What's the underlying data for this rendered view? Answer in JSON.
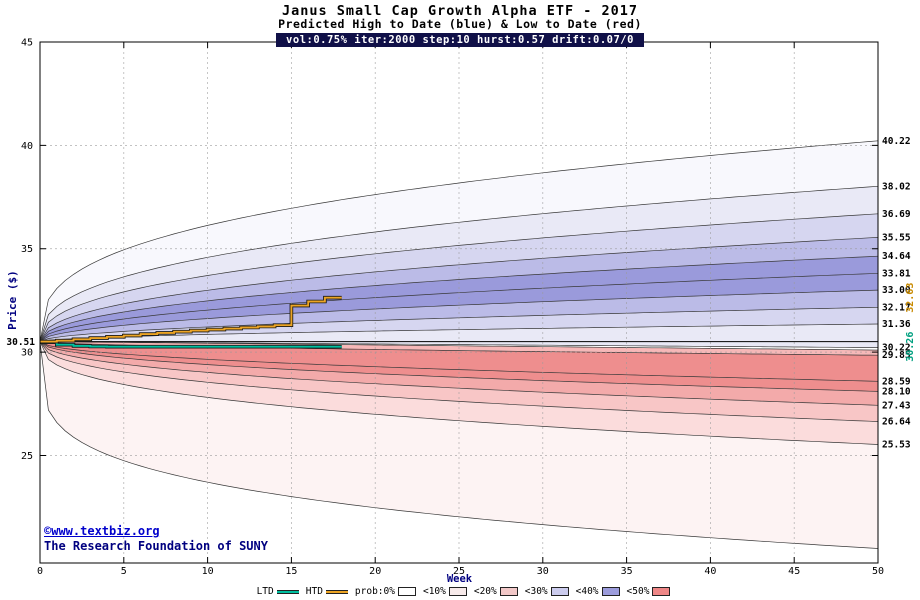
{
  "header": {
    "title": "Janus Small Cap Growth Alpha ETF - 2017",
    "subtitle": "Predicted High to Date (blue) &  Low to Date (red)",
    "params_bar": "vol:0.75% iter:2000 step:10 hurst:0.57 drift:0.07/0"
  },
  "axes": {
    "xlabel": "Week",
    "ylabel": "Price ($)",
    "start_price_label": "30.51"
  },
  "watermark": {
    "line1": "©www.textbiz.org",
    "line2": "The Research Foundation of SUNY"
  },
  "legend": {
    "line_items": [
      {
        "label": "LTD",
        "color": "#00bfa0"
      },
      {
        "label": "HTD",
        "color": "#eca424"
      }
    ],
    "band_items": [
      {
        "label": "prob:0%",
        "color": "#ffffff"
      },
      {
        "label": "<10%",
        "color": "#f7eaea"
      },
      {
        "label": "<20%",
        "color": "#f2c8c8"
      },
      {
        "label": "<30%",
        "color": "#ccccee"
      },
      {
        "label": "<40%",
        "color": "#9c9cdc"
      },
      {
        "label": "<50%",
        "color": "#ee8686"
      }
    ]
  },
  "chart_data": {
    "type": "area",
    "title": "Janus Small Cap Growth Alpha ETF - 2017",
    "subtitle": "Predicted High to Date (blue) &  Low to Date (red)",
    "xlabel": "Week",
    "ylabel": "Price ($)",
    "xlim": [
      0,
      50
    ],
    "ylim": [
      19.8,
      45
    ],
    "xticks": [
      0,
      5,
      10,
      15,
      20,
      25,
      30,
      35,
      40,
      45,
      50
    ],
    "yticks": [
      25,
      30,
      35,
      40,
      45
    ],
    "grid": true,
    "start_price": 30.51,
    "high_fan_curves": [
      {
        "end_value": 40.22,
        "label": "40.22",
        "shape_exp": 0.34
      },
      {
        "end_value": 38.02,
        "label": "38.02",
        "shape_exp": 0.38
      },
      {
        "end_value": 36.69,
        "label": "36.69",
        "shape_exp": 0.41
      },
      {
        "end_value": 35.55,
        "label": "35.55",
        "shape_exp": 0.44
      },
      {
        "end_value": 34.64,
        "label": "34.64",
        "shape_exp": 0.46
      },
      {
        "end_value": 33.81,
        "label": "33.81",
        "shape_exp": 0.48
      },
      {
        "end_value": 33.0,
        "label": "33.00",
        "shape_exp": 0.5
      },
      {
        "end_value": 32.17,
        "label": "32.17",
        "shape_exp": 0.53
      },
      {
        "end_value": 31.36,
        "label": "31.36",
        "shape_exp": 0.56
      },
      {
        "end_value": 30.22,
        "label": "30.22",
        "shape_exp": 1.0
      }
    ],
    "high_fan_band_colors": [
      "#f8f8fd",
      "#e9e9f6",
      "#d6d6f0",
      "#bbbbe7",
      "#9a9adb",
      "#9a9adb",
      "#bbbbe7",
      "#d6d6f0",
      "#e9e9f6"
    ],
    "low_fan_curves": [
      {
        "end_value": 30.1,
        "label": "",
        "shape_exp": 1.0
      },
      {
        "end_value": 29.85,
        "label": "29.85",
        "shape_exp": 0.6
      },
      {
        "end_value": 28.59,
        "label": "28.59",
        "shape_exp": 0.5
      },
      {
        "end_value": 28.1,
        "label": "28.10",
        "shape_exp": 0.48
      },
      {
        "end_value": 27.43,
        "label": "27.43",
        "shape_exp": 0.45
      },
      {
        "end_value": 26.64,
        "label": "26.64",
        "shape_exp": 0.42
      },
      {
        "end_value": 25.53,
        "label": "25.53",
        "shape_exp": 0.38
      },
      {
        "end_value": 20.5,
        "label": "",
        "shape_exp": 0.24
      }
    ],
    "low_fan_band_colors": [
      "#f6b8b8",
      "#ee8e8e",
      "#ee8e8e",
      "#f3aaaa",
      "#f8c6c6",
      "#fbdcdc",
      "#fdf3f3"
    ],
    "htd_series": {
      "name": "HTD",
      "color": "#eca424",
      "label_color": "#c88a00",
      "end_label": "32.63",
      "points": [
        [
          0,
          30.51
        ],
        [
          1,
          30.55
        ],
        [
          2,
          30.62
        ],
        [
          3,
          30.68
        ],
        [
          4,
          30.74
        ],
        [
          5,
          30.8
        ],
        [
          6,
          30.87
        ],
        [
          7,
          30.93
        ],
        [
          8,
          30.99
        ],
        [
          9,
          31.04
        ],
        [
          10,
          31.09
        ],
        [
          11,
          31.14
        ],
        [
          12,
          31.19
        ],
        [
          13,
          31.24
        ],
        [
          14,
          31.3
        ],
        [
          15,
          32.25
        ],
        [
          16,
          32.45
        ],
        [
          17,
          32.63
        ],
        [
          18,
          32.63
        ]
      ]
    },
    "ltd_series": {
      "name": "LTD",
      "color": "#00bfa0",
      "label_color": "#00a080",
      "end_label": "30.26",
      "points": [
        [
          0,
          30.48
        ],
        [
          1,
          30.36
        ],
        [
          2,
          30.3
        ],
        [
          3,
          30.27
        ],
        [
          4,
          30.26
        ],
        [
          18,
          30.26
        ]
      ]
    }
  }
}
